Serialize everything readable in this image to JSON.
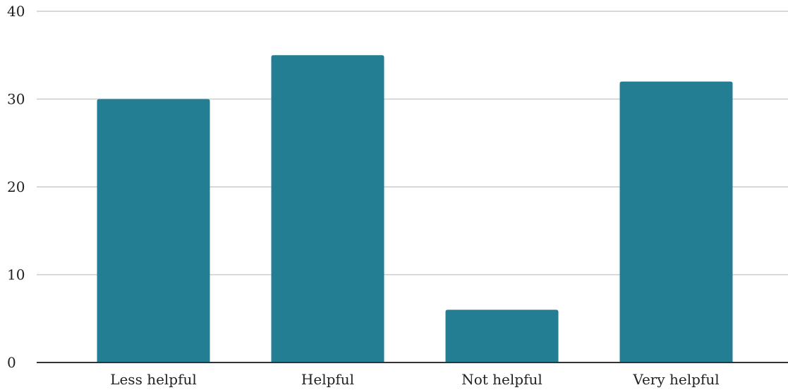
{
  "chart_data": {
    "type": "bar",
    "categories": [
      "Less helpful",
      "Helpful",
      "Not helpful",
      "Very helpful"
    ],
    "values": [
      30,
      35,
      6,
      32
    ],
    "title": "",
    "xlabel": "",
    "ylabel": "",
    "ylim": [
      0,
      40
    ],
    "yticks": [
      0,
      10,
      20,
      30,
      40
    ],
    "ytick_labels": [
      "0",
      "10",
      "20",
      "30",
      "40"
    ],
    "grid": true,
    "legend": "none",
    "colors": {
      "bar": "#237e94",
      "grid": "#cccccc",
      "axis": "#333333",
      "text": "#222222"
    }
  }
}
